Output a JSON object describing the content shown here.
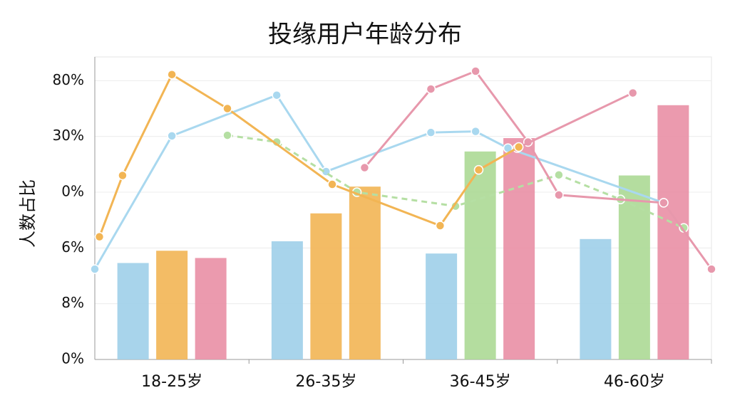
{
  "chart_data": {
    "type": "bar",
    "title": "投缘用户年龄分布",
    "y_label": "人数占比",
    "categories": [
      "18-25岁",
      "26-35岁",
      "36-45岁",
      "46-60岁"
    ],
    "ylim": [
      0,
      5.4
    ],
    "yticks": [
      {
        "value": 0,
        "label": "0%"
      },
      {
        "value": 1,
        "label": "8%"
      },
      {
        "value": 2,
        "label": "6%"
      },
      {
        "value": 3,
        "label": "0%"
      },
      {
        "value": 4,
        "label": "30%"
      },
      {
        "value": 5,
        "label": "80%"
      }
    ],
    "xlim": [
      0,
      4
    ],
    "grid": true,
    "series": [
      {
        "values": [
          1.73,
          2.12,
          1.9,
          2.16
        ],
        "colors": [
          "#9fcfe9",
          "#9fcfe9",
          "#9fcfe9",
          "#9fcfe9"
        ]
      },
      {
        "values": [
          1.95,
          2.62,
          3.73,
          3.3
        ],
        "colors": [
          "#f2b554",
          "#f2b554",
          "#acd995",
          "#acd995"
        ]
      },
      {
        "values": [
          1.82,
          3.1,
          3.97,
          4.56
        ],
        "colors": [
          "#e98fa5",
          "#f2b554",
          "#e98fa5",
          "#e98fa5"
        ]
      }
    ],
    "lines": [
      {
        "color": "#a9d8ef",
        "dashed": false,
        "x": [
          0,
          0.5,
          1.18,
          1.5,
          2.18,
          2.47,
          2.68,
          3.69
        ],
        "values": [
          1.62,
          4.01,
          4.74,
          3.37,
          4.07,
          4.09,
          3.79,
          2.81
        ]
      },
      {
        "color": "#b5dfa3",
        "dashed": true,
        "x": [
          0.86,
          1.18,
          1.7,
          2.34,
          3.01,
          3.41,
          3.82
        ],
        "values": [
          4.02,
          3.9,
          3.0,
          2.75,
          3.31,
          2.87,
          2.36
        ]
      },
      {
        "color": "#e798ac",
        "dashed": false,
        "x": [
          1.75,
          2.18,
          2.47,
          2.81,
          3.01,
          3.69,
          4.0
        ],
        "values": [
          3.44,
          4.85,
          5.17,
          3.9,
          2.95,
          2.81,
          1.62
        ]
      },
      {
        "color": "#e798ac",
        "dashed": false,
        "x": [
          2.74,
          3.49
        ],
        "values": [
          3.79,
          4.78
        ]
      },
      {
        "color": "#f2b554",
        "dashed": false,
        "x": [
          0.03,
          0.18,
          0.5,
          0.86,
          1.54,
          2.24,
          2.49,
          2.75
        ],
        "values": [
          2.2,
          3.3,
          5.11,
          4.5,
          3.14,
          2.4,
          3.4,
          3.81
        ]
      }
    ]
  }
}
